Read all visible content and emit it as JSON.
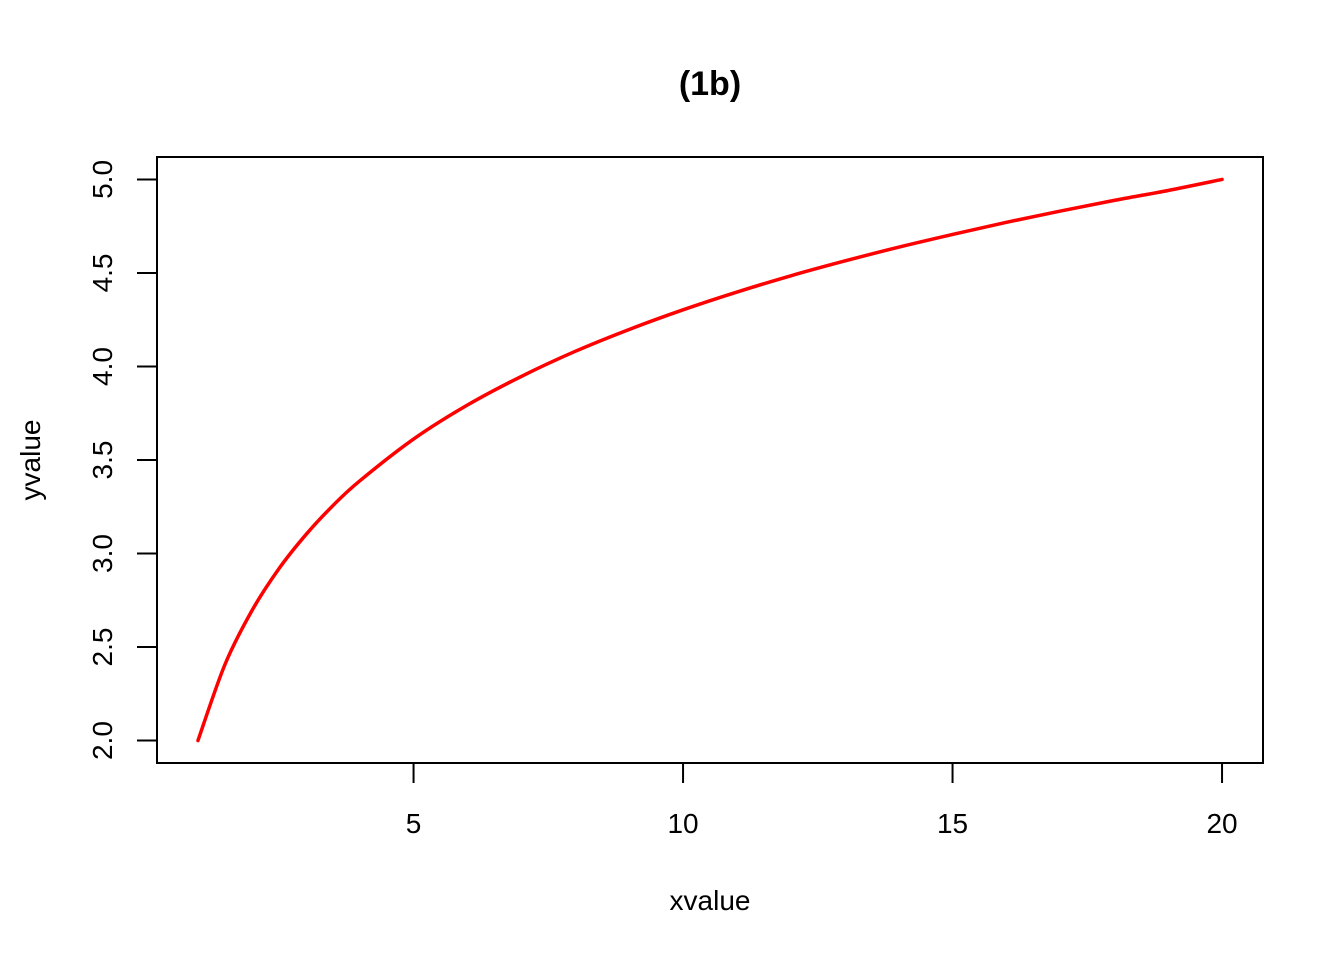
{
  "chart_data": {
    "type": "line",
    "title": "(1b)",
    "xlabel": "xvalue",
    "ylabel": "yvalue",
    "xlim": [
      0.24,
      20.76
    ],
    "ylim": [
      1.88,
      5.12
    ],
    "x_ticks": [
      5,
      10,
      15,
      20
    ],
    "x_tick_labels": [
      "5",
      "10",
      "15",
      "20"
    ],
    "y_ticks": [
      2.0,
      2.5,
      3.0,
      3.5,
      4.0,
      4.5,
      5.0
    ],
    "y_tick_labels": [
      "2.0",
      "2.5",
      "3.0",
      "3.5",
      "4.0",
      "4.5",
      "5.0"
    ],
    "grid": false,
    "series": [
      {
        "color": "#ff0000",
        "x": [
          1,
          1.5,
          2,
          2.5,
          3,
          3.5,
          4,
          5,
          6,
          7,
          8,
          9,
          10,
          11,
          12,
          13,
          14,
          15,
          16,
          17,
          18,
          19,
          20
        ],
        "y": [
          2.0,
          2.406,
          2.694,
          2.918,
          3.1,
          3.255,
          3.388,
          3.612,
          3.794,
          3.947,
          4.081,
          4.198,
          4.303,
          4.398,
          4.485,
          4.564,
          4.638,
          4.706,
          4.771,
          4.831,
          4.888,
          4.941,
          5.0
        ]
      }
    ]
  }
}
